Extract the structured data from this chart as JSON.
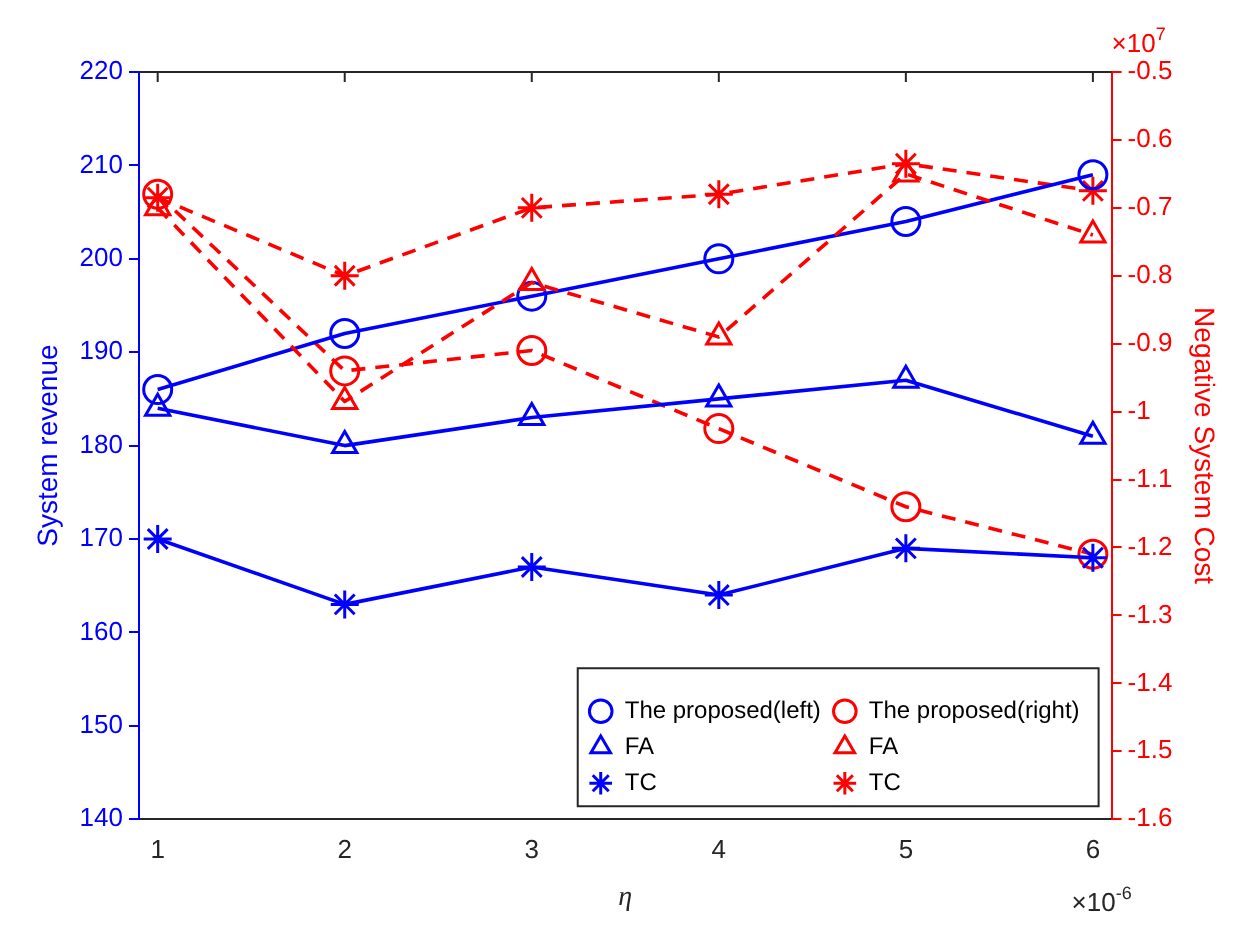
{
  "chart_data": {
    "type": "line",
    "xlabel": "η",
    "ylabel": "System revenue",
    "y2label": "Negative System Cost",
    "x": [
      1,
      2,
      3,
      4,
      5,
      6
    ],
    "xlim": [
      0.9,
      6.1
    ],
    "xticks": [
      1,
      2,
      3,
      4,
      5,
      6
    ],
    "ylim": [
      140,
      220
    ],
    "yticks": [
      140,
      150,
      160,
      170,
      180,
      190,
      200,
      210,
      220
    ],
    "y2lim": [
      -1.6,
      -0.5
    ],
    "y2ticks": [
      -1.6,
      -1.5,
      -1.4,
      -1.3,
      -1.2,
      -1.1,
      -1,
      -0.9,
      -0.8,
      -0.7,
      -0.6,
      -0.5
    ],
    "grid": false,
    "legend": "bottom right",
    "annotations": [
      "×10$^{7}$",
      "×10$^{-6}$"
    ],
    "series": [
      {
        "name": "The proposed(left)",
        "color": "#0000ff",
        "marker": "circle",
        "line_style": "solid",
        "values": [
          186,
          192,
          196,
          200,
          204,
          209
        ]
      },
      {
        "name": "FA",
        "color": "#0000ff",
        "marker": "triangle",
        "line_style": "solid",
        "values": [
          184,
          180,
          183,
          185,
          187,
          181
        ]
      },
      {
        "name": "TC",
        "color": "#0000ff",
        "marker": "cross",
        "line_style": "solid",
        "values": [
          170,
          163,
          167,
          164,
          169,
          168
        ]
      },
      {
        "name": "The proposed(right)",
        "color": "#ff0000",
        "marker": "circle",
        "line_style": "dashed",
        "axis": "y2",
        "values": [
          -0.68,
          -0.94,
          -0.91,
          -1.025,
          -1.14,
          -1.21
        ]
      },
      {
        "name": "FA",
        "color": "#ff0000",
        "marker": "triangle",
        "line_style": "dashed",
        "axis": "y2",
        "values": [
          -0.7,
          -0.985,
          -0.81,
          -0.89,
          -0.65,
          -0.74
        ]
      },
      {
        "name": "TC",
        "color": "#ff0000",
        "marker": "cross",
        "line_style": "dashed",
        "axis": "y2",
        "values": [
          -0.685,
          -0.8,
          -0.7,
          -0.68,
          -0.635,
          -0.675
        ]
      }
    ]
  }
}
